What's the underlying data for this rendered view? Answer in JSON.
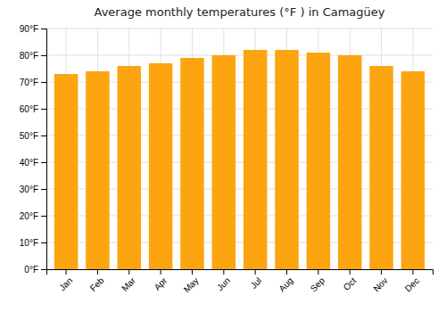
{
  "chart_data": {
    "type": "bar",
    "title": "Average monthly temperatures (°F ) in Camagüey",
    "categories": [
      "Jan",
      "Feb",
      "Mar",
      "Apr",
      "May",
      "Jun",
      "Jul",
      "Aug",
      "Sep",
      "Oct",
      "Nov",
      "Dec"
    ],
    "values": [
      73,
      74,
      76,
      77,
      79,
      80,
      82,
      82,
      81,
      80,
      76,
      74
    ],
    "color": "#FCA510",
    "ylim": [
      0,
      90
    ],
    "yticks": [
      {
        "value": 0,
        "label": "0°F"
      },
      {
        "value": 10,
        "label": "10°F"
      },
      {
        "value": 20,
        "label": "20°F"
      },
      {
        "value": 30,
        "label": "30°F"
      },
      {
        "value": 40,
        "label": "40°F"
      },
      {
        "value": 50,
        "label": "50°F"
      },
      {
        "value": 60,
        "label": "60°F"
      },
      {
        "value": 70,
        "label": "70°F"
      },
      {
        "value": 80,
        "label": "80°F"
      },
      {
        "value": 90,
        "label": "90°F"
      }
    ],
    "grid": true
  }
}
